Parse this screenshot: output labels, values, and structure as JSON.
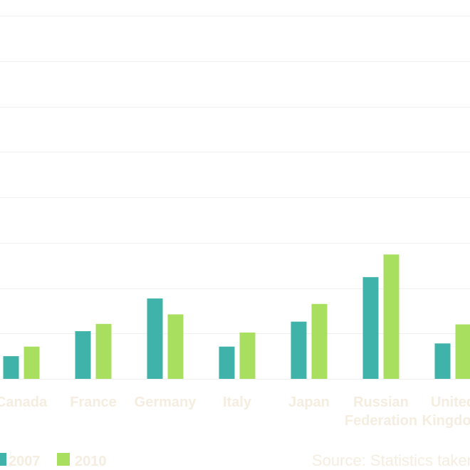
{
  "chart_data": {
    "type": "bar",
    "categories": [
      "Canada",
      "France",
      "Germany",
      "Italy",
      "Japan",
      "Russian Federation",
      "United Kingdom"
    ],
    "category_lines": [
      [
        "Canada"
      ],
      [
        "France"
      ],
      [
        "Germany"
      ],
      [
        "Italy"
      ],
      [
        "Japan"
      ],
      [
        "Russian",
        "Federation"
      ],
      [
        "United",
        "Kingdom"
      ]
    ],
    "series": [
      {
        "name": "2007",
        "color": "#3fb3aa",
        "values": [
          0.5,
          1.05,
          1.77,
          0.71,
          1.26,
          2.24,
          0.78
        ]
      },
      {
        "name": "2010",
        "color": "#a8df5f",
        "values": [
          0.71,
          1.21,
          1.42,
          1.02,
          1.65,
          2.74,
          1.2
        ]
      }
    ],
    "ylim": [
      0,
      8
    ],
    "y_grid_step": 1,
    "grid": true,
    "legend_position": "bottom-left",
    "source": "Source: Statistics taken",
    "label_color": "#f5ede0",
    "grid_color": "#f0f0f0"
  }
}
